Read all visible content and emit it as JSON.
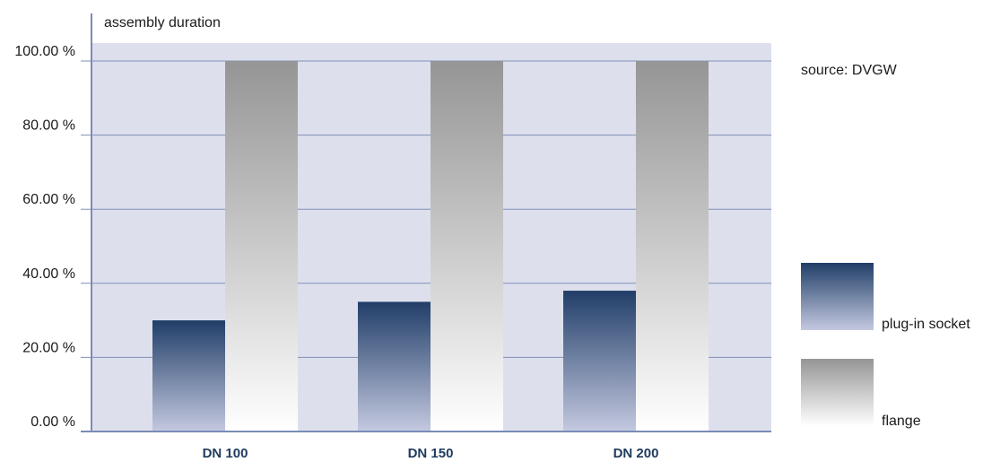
{
  "chart_data": {
    "type": "bar",
    "ylabel": "assembly duration",
    "annotation": "source: DVGW",
    "categories": [
      "DN 100",
      "DN 150",
      "DN 200"
    ],
    "series": [
      {
        "name": "plug-in socket",
        "values": [
          30,
          35,
          38
        ]
      },
      {
        "name": "flange",
        "values": [
          100,
          100,
          100
        ]
      }
    ],
    "ylim": [
      0,
      100
    ],
    "yticks": [
      0,
      20,
      40,
      60,
      80,
      100
    ],
    "ytick_labels": [
      "0.00 %",
      "20.00 %",
      "40.00 %",
      "60.00 %",
      "80.00 %",
      "100.00 %"
    ],
    "grid": true,
    "legend_position": "right",
    "colors": {
      "plot_background": "#dde0ec",
      "socket_top": "#213e68",
      "socket_bottom": "#c4c9e0",
      "flange_top": "#959595",
      "flange_bottom": "#ffffff",
      "gridline": "#7f8fb8",
      "axis": "#7a8bb8",
      "category_text": "#1f3a5f"
    }
  }
}
